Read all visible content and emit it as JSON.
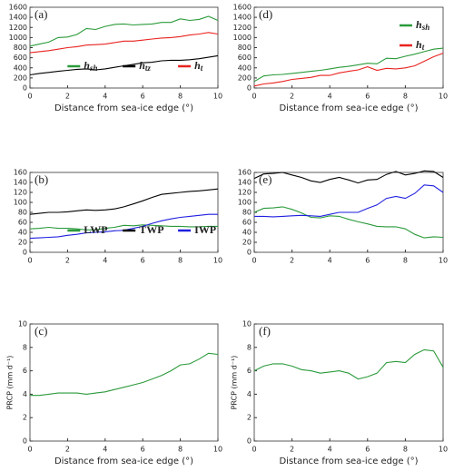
{
  "chart_data": [
    {
      "type": "line",
      "label": "(a)",
      "xlabel": "Distance from sea-ice edge (°)",
      "x": [
        0,
        0.5,
        1,
        1.5,
        2,
        2.5,
        3,
        3.5,
        4,
        4.5,
        5,
        5.5,
        6,
        6.5,
        7,
        7.5,
        8,
        8.5,
        9,
        9.5,
        10
      ],
      "xlim": [
        0,
        10
      ],
      "xticks": [
        0,
        2,
        4,
        6,
        8,
        10
      ],
      "ylim": [
        0,
        1600
      ],
      "yticks": [
        0,
        200,
        400,
        600,
        800,
        1000,
        1200,
        1400,
        1600
      ],
      "legend": "lower center",
      "series": [
        {
          "name": "h",
          "subscript": "sh",
          "color": "#2a9a3a",
          "values": [
            830,
            870,
            910,
            1000,
            1010,
            1060,
            1180,
            1160,
            1220,
            1260,
            1270,
            1250,
            1260,
            1270,
            1300,
            1300,
            1370,
            1340,
            1360,
            1420,
            1340
          ]
        },
        {
          "name": "h",
          "subscript": "tz",
          "color": "#000000",
          "values": [
            260,
            290,
            310,
            330,
            350,
            370,
            380,
            360,
            380,
            410,
            440,
            470,
            500,
            510,
            540,
            550,
            550,
            560,
            580,
            610,
            640
          ]
        },
        {
          "name": "h",
          "subscript": "t",
          "color": "#e8231f",
          "values": [
            700,
            720,
            740,
            770,
            800,
            820,
            850,
            860,
            870,
            900,
            930,
            930,
            950,
            970,
            990,
            1000,
            1020,
            1050,
            1070,
            1100,
            1070
          ]
        }
      ]
    },
    {
      "type": "line",
      "label": "(d)",
      "xlabel": "Distance from sea-ice edge (°)",
      "x": [
        0,
        0.5,
        1,
        1.5,
        2,
        2.5,
        3,
        3.5,
        4,
        4.5,
        5,
        5.5,
        6,
        6.5,
        7,
        7.5,
        8,
        8.5,
        9,
        9.5,
        10
      ],
      "xlim": [
        0,
        10
      ],
      "xticks": [
        0,
        2,
        4,
        6,
        8,
        10
      ],
      "ylim": [
        0,
        1600
      ],
      "yticks": [
        0,
        200,
        400,
        600,
        800,
        1000,
        1200,
        1400,
        1600
      ],
      "legend": "upper right",
      "series": [
        {
          "name": "h",
          "subscript": "sh",
          "color": "#2a9a3a",
          "values": [
            130,
            240,
            260,
            270,
            290,
            310,
            330,
            350,
            380,
            410,
            430,
            460,
            490,
            480,
            590,
            580,
            630,
            670,
            720,
            770,
            790
          ]
        },
        {
          "name": "h",
          "subscript": "t",
          "color": "#e8231f",
          "values": [
            40,
            80,
            100,
            130,
            170,
            190,
            210,
            250,
            250,
            300,
            330,
            360,
            420,
            350,
            390,
            380,
            400,
            440,
            530,
            620,
            690
          ]
        }
      ]
    },
    {
      "type": "line",
      "label": "(b)",
      "x": [
        0,
        0.5,
        1,
        1.5,
        2,
        2.5,
        3,
        3.5,
        4,
        4.5,
        5,
        5.5,
        6,
        6.5,
        7,
        7.5,
        8,
        8.5,
        9,
        9.5,
        10
      ],
      "xlim": [
        0,
        10
      ],
      "xticks": [
        0,
        2,
        4,
        6,
        8,
        10
      ],
      "ylim": [
        0,
        160
      ],
      "yticks": [
        0,
        20,
        40,
        60,
        80,
        100,
        120,
        140,
        160
      ],
      "legend": "lower center",
      "series": [
        {
          "name": "LWP",
          "color": "#2a9a3a",
          "values": [
            47,
            48,
            50,
            48,
            48,
            47,
            45,
            45,
            48,
            50,
            54,
            53,
            55,
            54,
            53,
            52,
            52,
            51,
            51,
            52,
            52
          ]
        },
        {
          "name": "TWP",
          "color": "#000000",
          "values": [
            76,
            78,
            80,
            80,
            81,
            83,
            85,
            84,
            85,
            87,
            91,
            97,
            103,
            110,
            116,
            118,
            120,
            122,
            123,
            125,
            127
          ]
        },
        {
          "name": "IWP",
          "color": "#1f1fe0",
          "values": [
            28,
            29,
            30,
            31,
            34,
            36,
            39,
            40,
            41,
            43,
            44,
            48,
            52,
            58,
            63,
            67,
            70,
            72,
            74,
            76,
            76
          ]
        }
      ]
    },
    {
      "type": "line",
      "label": "(e)",
      "x": [
        0,
        0.5,
        1,
        1.5,
        2,
        2.5,
        3,
        3.5,
        4,
        4.5,
        5,
        5.5,
        6,
        6.5,
        7,
        7.5,
        8,
        8.5,
        9,
        9.5,
        10
      ],
      "xlim": [
        0,
        10
      ],
      "xticks": [
        0,
        2,
        4,
        6,
        8,
        10
      ],
      "ylim": [
        0,
        160
      ],
      "yticks": [
        0,
        20,
        40,
        60,
        80,
        100,
        120,
        140,
        160
      ],
      "series": [
        {
          "color": "#000000",
          "values": [
            148,
            157,
            158,
            160,
            155,
            150,
            143,
            140,
            146,
            150,
            145,
            139,
            145,
            146,
            156,
            162,
            155,
            158,
            163,
            162,
            150
          ]
        },
        {
          "color": "#2a9a3a",
          "values": [
            80,
            88,
            89,
            91,
            86,
            79,
            70,
            69,
            73,
            72,
            66,
            61,
            57,
            52,
            51,
            51,
            47,
            36,
            29,
            31,
            30
          ]
        },
        {
          "color": "#1f1fe0",
          "values": [
            72,
            72,
            71,
            72,
            73,
            74,
            73,
            72,
            76,
            80,
            80,
            80,
            88,
            95,
            108,
            112,
            108,
            118,
            135,
            133,
            120
          ]
        }
      ]
    },
    {
      "type": "line",
      "label": "(c)",
      "xlabel": "Distance from sea-ice edge (°)",
      "ylabel": "PRCP (mm d⁻¹)",
      "x": [
        0,
        0.5,
        1,
        1.5,
        2,
        2.5,
        3,
        3.5,
        4,
        4.5,
        5,
        5.5,
        6,
        6.5,
        7,
        7.5,
        8,
        8.5,
        9,
        9.5,
        10
      ],
      "xlim": [
        0,
        10
      ],
      "xticks": [
        0,
        2,
        4,
        6,
        8,
        10
      ],
      "ylim": [
        0,
        10
      ],
      "yticks": [
        0,
        2,
        4,
        6,
        8,
        10
      ],
      "series": [
        {
          "color": "#2a9a3a",
          "values": [
            3.9,
            3.9,
            4.0,
            4.1,
            4.1,
            4.1,
            4.0,
            4.1,
            4.2,
            4.4,
            4.6,
            4.8,
            5.0,
            5.3,
            5.6,
            6.0,
            6.5,
            6.6,
            7.0,
            7.5,
            7.4
          ]
        }
      ]
    },
    {
      "type": "line",
      "label": "(f)",
      "xlabel": "Distance from sea-ice edge (°)",
      "ylabel": "PRCP (mm d⁻¹)",
      "x": [
        0,
        0.5,
        1,
        1.5,
        2,
        2.5,
        3,
        3.5,
        4,
        4.5,
        5,
        5.5,
        6,
        6.5,
        7,
        7.5,
        8,
        8.5,
        9,
        9.5,
        10
      ],
      "xlim": [
        0,
        10
      ],
      "xticks": [
        0,
        2,
        4,
        6,
        8,
        10
      ],
      "ylim": [
        0,
        10
      ],
      "yticks": [
        0,
        2,
        4,
        6,
        8,
        10
      ],
      "series": [
        {
          "color": "#2a9a3a",
          "values": [
            6.0,
            6.4,
            6.6,
            6.6,
            6.4,
            6.1,
            6.0,
            5.8,
            5.9,
            6.0,
            5.8,
            5.3,
            5.5,
            5.8,
            6.7,
            6.8,
            6.7,
            7.4,
            7.8,
            7.7,
            6.3
          ]
        }
      ]
    }
  ]
}
